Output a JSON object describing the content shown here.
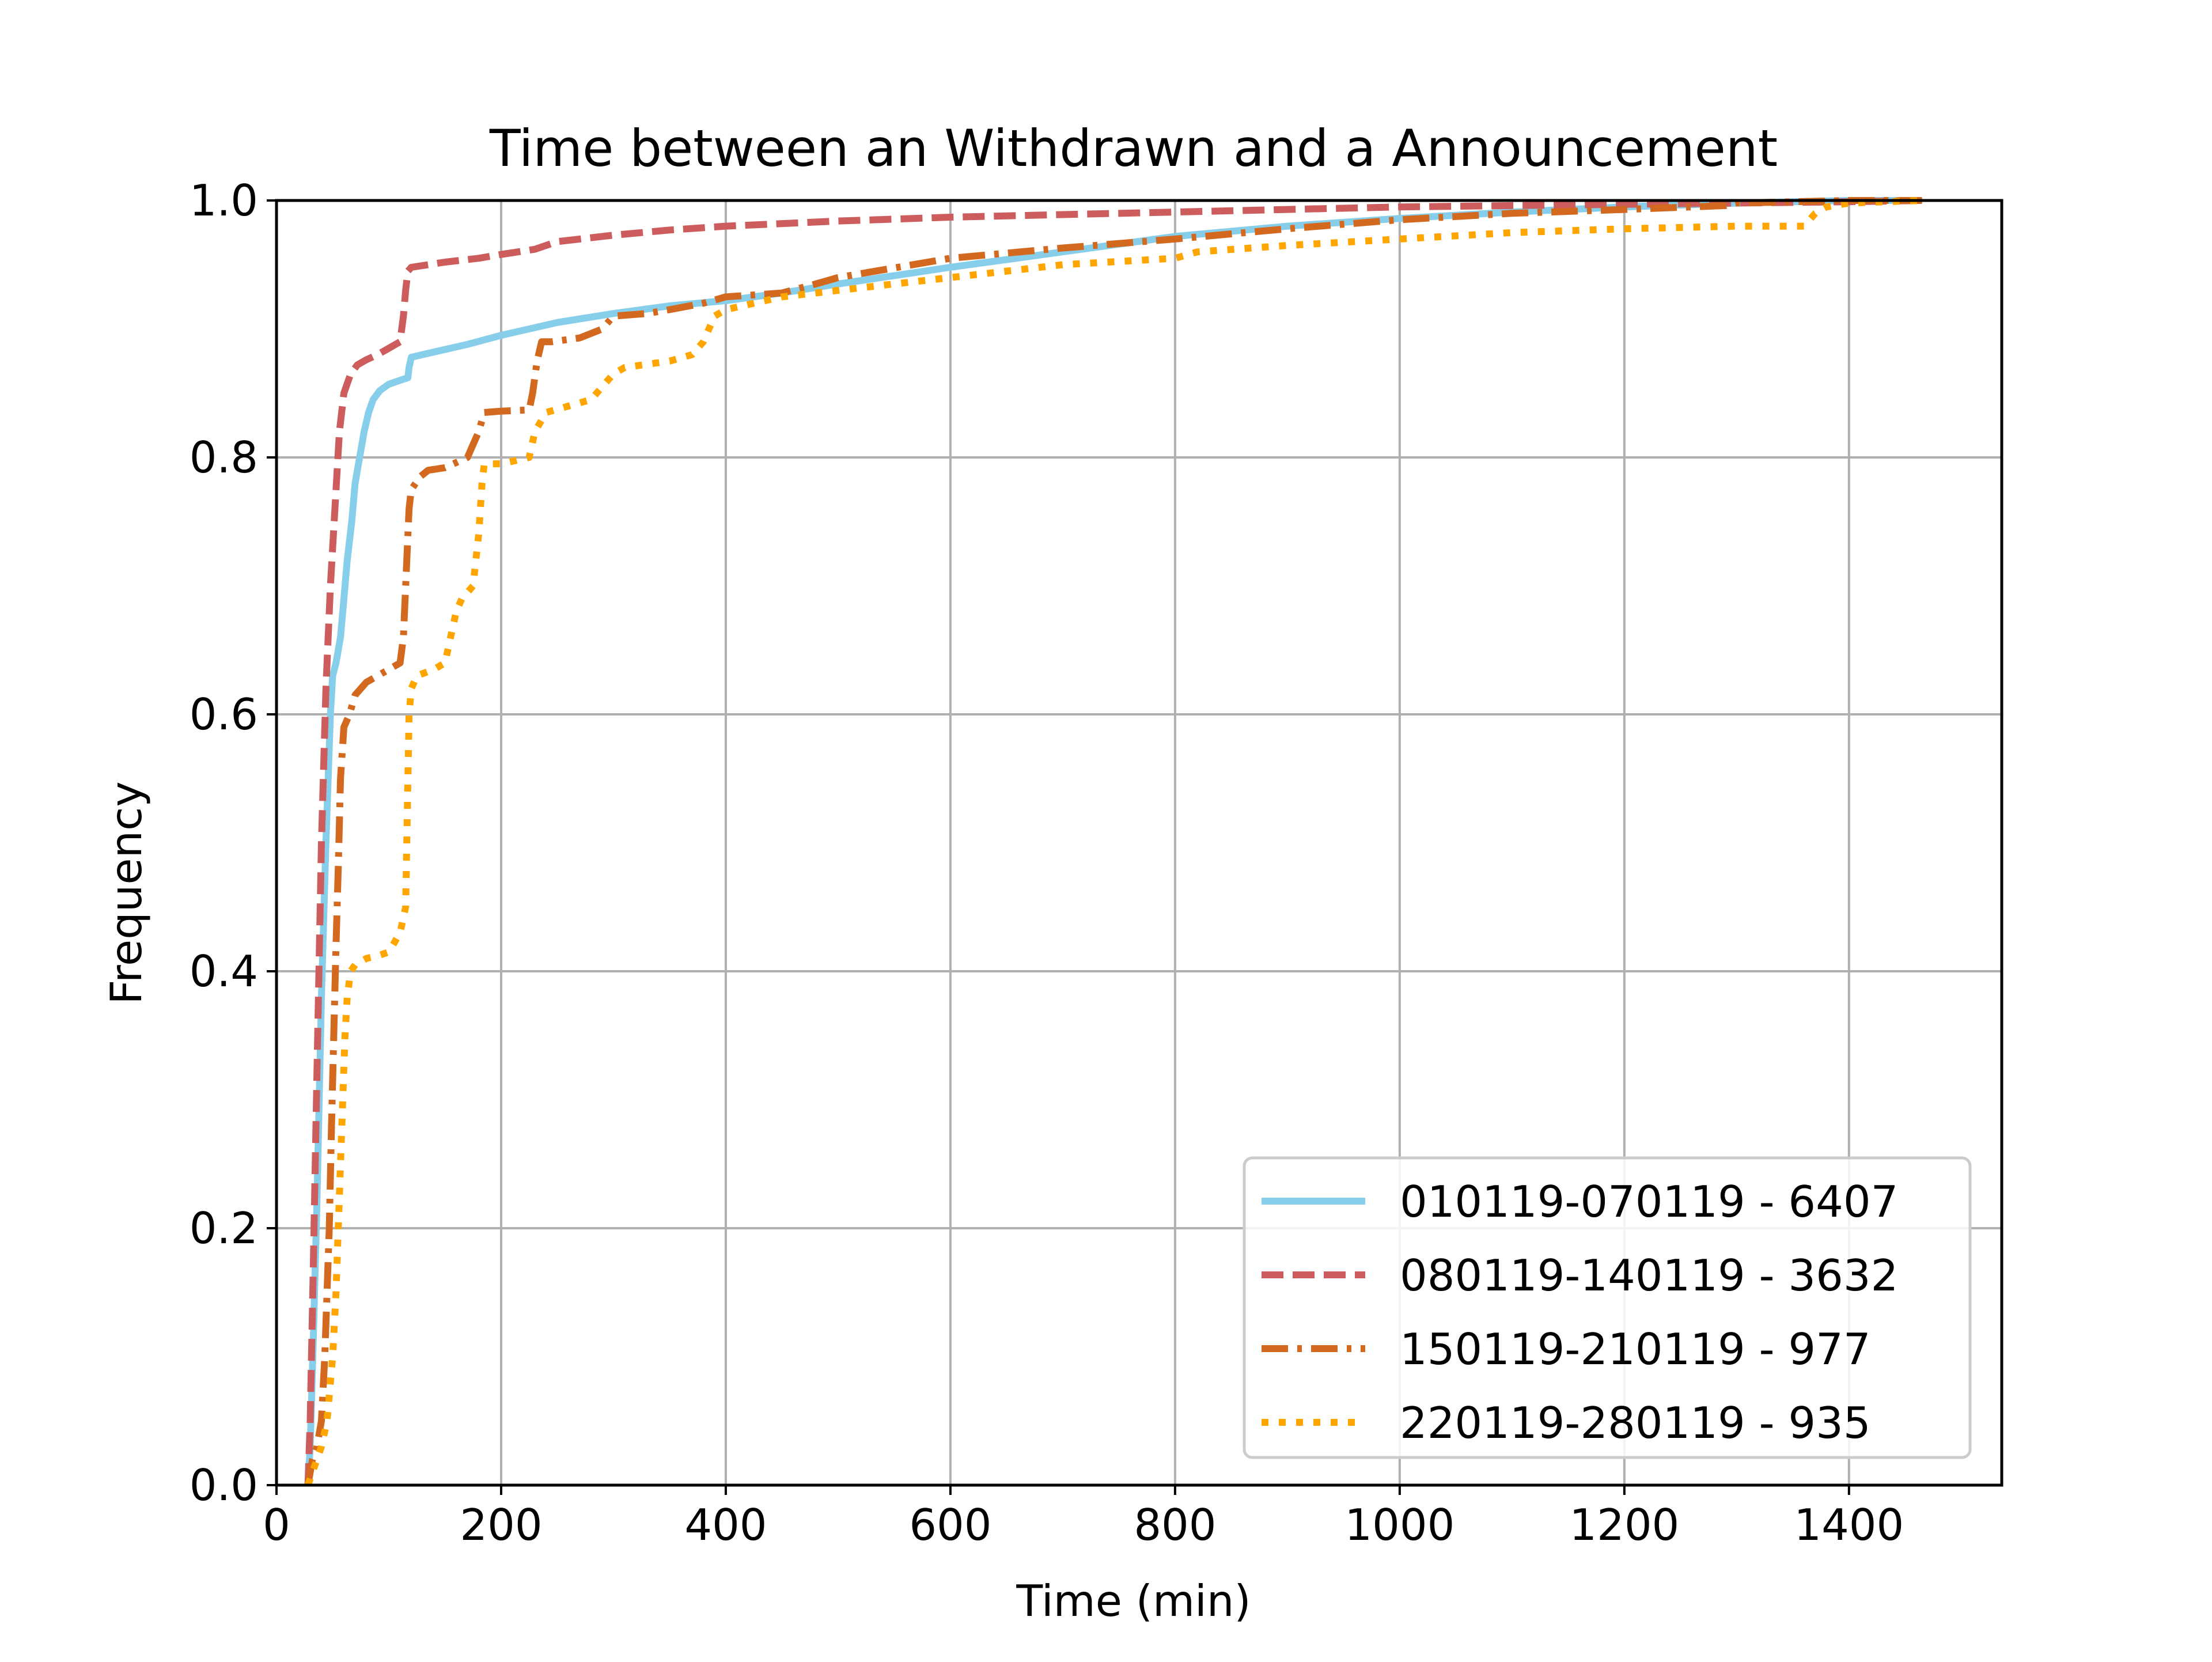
{
  "chart_data": {
    "type": "line",
    "title": "Time between an Withdrawn and a Announcement",
    "xlabel": "Time (min)",
    "ylabel": "Frequency",
    "xlim": [
      0,
      1536
    ],
    "ylim": [
      0,
      1
    ],
    "xticks": [
      0,
      200,
      400,
      600,
      800,
      1000,
      1200,
      1400
    ],
    "yticks": [
      0.0,
      0.2,
      0.4,
      0.6,
      0.8,
      1.0
    ],
    "xtick_labels": [
      "0",
      "200",
      "400",
      "600",
      "800",
      "1000",
      "1200",
      "1400"
    ],
    "ytick_labels": [
      "0.0",
      "0.2",
      "0.4",
      "0.6",
      "0.8",
      "1.0"
    ],
    "grid": true,
    "legend_position": "lower-right",
    "series": [
      {
        "name": "010119-070119 - 6407",
        "color": "#87CEEB",
        "style": "solid",
        "x": [
          28,
          30,
          33,
          36,
          38,
          40,
          42,
          44,
          46,
          48,
          50,
          53,
          57,
          60,
          63,
          67,
          70,
          74,
          78,
          82,
          86,
          92,
          100,
          110,
          117,
          118,
          120,
          140,
          170,
          200,
          250,
          300,
          350,
          400,
          450,
          500,
          600,
          700,
          800,
          900,
          1000,
          1100,
          1200,
          1300,
          1400,
          1465
        ],
        "y": [
          0.0,
          0.03,
          0.12,
          0.22,
          0.3,
          0.38,
          0.44,
          0.5,
          0.55,
          0.6,
          0.63,
          0.64,
          0.66,
          0.69,
          0.72,
          0.75,
          0.78,
          0.8,
          0.82,
          0.835,
          0.845,
          0.852,
          0.857,
          0.86,
          0.862,
          0.87,
          0.878,
          0.882,
          0.888,
          0.895,
          0.905,
          0.912,
          0.918,
          0.922,
          0.928,
          0.935,
          0.948,
          0.96,
          0.972,
          0.98,
          0.986,
          0.991,
          0.995,
          0.998,
          1.0,
          1.0
        ]
      },
      {
        "name": "080119-140119 - 3632",
        "color": "#CD5C5C",
        "style": "dashed",
        "x": [
          28,
          30,
          33,
          36,
          40,
          44,
          48,
          52,
          56,
          60,
          66,
          72,
          80,
          90,
          100,
          110,
          113,
          115,
          117,
          120,
          150,
          180,
          200,
          230,
          250,
          300,
          350,
          400,
          500,
          600,
          700,
          800,
          900,
          1000,
          1100,
          1200,
          1300,
          1400,
          1465
        ],
        "y": [
          0.0,
          0.05,
          0.18,
          0.32,
          0.5,
          0.62,
          0.7,
          0.76,
          0.82,
          0.85,
          0.865,
          0.872,
          0.876,
          0.88,
          0.885,
          0.89,
          0.91,
          0.93,
          0.945,
          0.948,
          0.952,
          0.955,
          0.958,
          0.962,
          0.968,
          0.973,
          0.977,
          0.98,
          0.984,
          0.987,
          0.989,
          0.991,
          0.993,
          0.995,
          0.996,
          0.997,
          0.998,
          0.999,
          1.0
        ]
      },
      {
        "name": "150119-210119 - 977",
        "color": "#D2691E",
        "style": "dashdot",
        "x": [
          28,
          32,
          36,
          40,
          43,
          45,
          47,
          49,
          51,
          53,
          55,
          57,
          60,
          65,
          70,
          80,
          90,
          100,
          110,
          113,
          116,
          118,
          120,
          124,
          128,
          135,
          150,
          170,
          180,
          185,
          200,
          225,
          228,
          232,
          236,
          245,
          270,
          290,
          295,
          300,
          330,
          350,
          380,
          400,
          450,
          480,
          500,
          600,
          700,
          800,
          900,
          1000,
          1100,
          1200,
          1290,
          1300,
          1400,
          1465
        ],
        "y": [
          0.0,
          0.02,
          0.03,
          0.05,
          0.1,
          0.15,
          0.2,
          0.28,
          0.35,
          0.42,
          0.48,
          0.55,
          0.59,
          0.6,
          0.615,
          0.625,
          0.63,
          0.635,
          0.64,
          0.66,
          0.72,
          0.76,
          0.775,
          0.78,
          0.785,
          0.79,
          0.792,
          0.8,
          0.82,
          0.835,
          0.836,
          0.837,
          0.85,
          0.875,
          0.89,
          0.89,
          0.893,
          0.9,
          0.905,
          0.91,
          0.912,
          0.915,
          0.92,
          0.925,
          0.928,
          0.935,
          0.94,
          0.955,
          0.963,
          0.97,
          0.978,
          0.985,
          0.99,
          0.993,
          0.996,
          0.998,
          1.0,
          1.0
        ]
      },
      {
        "name": "220119-280119 - 935",
        "color": "#FFA500",
        "style": "dotted",
        "x": [
          28,
          32,
          36,
          40,
          45,
          50,
          53,
          55,
          57,
          59,
          61,
          63,
          66,
          70,
          80,
          90,
          100,
          110,
          115,
          118,
          120,
          125,
          140,
          150,
          155,
          160,
          165,
          175,
          180,
          183,
          185,
          190,
          200,
          210,
          225,
          230,
          240,
          260,
          280,
          290,
          295,
          300,
          310,
          350,
          370,
          380,
          385,
          390,
          400,
          450,
          500,
          550,
          600,
          700,
          800,
          820,
          900,
          1000,
          1100,
          1200,
          1300,
          1360,
          1370,
          1380,
          1400,
          1465
        ],
        "y": [
          0.0,
          0.01,
          0.02,
          0.03,
          0.05,
          0.1,
          0.15,
          0.2,
          0.25,
          0.3,
          0.35,
          0.38,
          0.4,
          0.405,
          0.41,
          0.412,
          0.415,
          0.43,
          0.45,
          0.6,
          0.62,
          0.63,
          0.635,
          0.64,
          0.66,
          0.68,
          0.69,
          0.7,
          0.74,
          0.78,
          0.795,
          0.795,
          0.795,
          0.797,
          0.8,
          0.82,
          0.835,
          0.84,
          0.845,
          0.855,
          0.86,
          0.865,
          0.87,
          0.875,
          0.88,
          0.89,
          0.9,
          0.91,
          0.915,
          0.925,
          0.93,
          0.935,
          0.94,
          0.95,
          0.955,
          0.96,
          0.965,
          0.97,
          0.975,
          0.978,
          0.98,
          0.98,
          0.99,
          0.995,
          0.998,
          1.0
        ]
      }
    ]
  }
}
